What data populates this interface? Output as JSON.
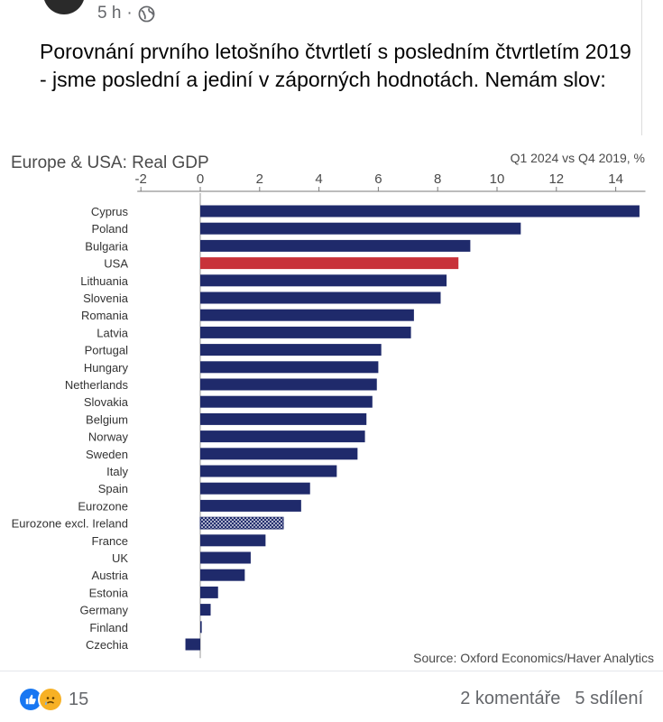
{
  "post": {
    "time": "5 h",
    "separator": "·",
    "audience_icon": "globe-icon",
    "text": "Porovnání prvního letošního čtvrtletí s posledním čtvrtletím 2019 - jsme poslední a jediní v záporných hodnotách. Nemám slov:"
  },
  "colors": {
    "bar": "#1f2a6b",
    "highlight": "#c8323a",
    "title": "#4a4a4a"
  },
  "chart_data": {
    "type": "bar",
    "orientation": "horizontal",
    "title": "Europe & USA: Real GDP",
    "subtitle": "Q1 2024 vs Q4 2019, %",
    "source": "Source: Oxford Economics/Haver Analytics",
    "xlim": [
      -2,
      15
    ],
    "ticks": [
      -2,
      0,
      2,
      4,
      6,
      8,
      10,
      12,
      14
    ],
    "categories": [
      "Cyprus",
      "Poland",
      "Bulgaria",
      "USA",
      "Lithuania",
      "Slovenia",
      "Romania",
      "Latvia",
      "Portugal",
      "Hungary",
      "Netherlands",
      "Slovakia",
      "Belgium",
      "Norway",
      "Sweden",
      "Italy",
      "Spain",
      "Eurozone",
      "Eurozone excl. Ireland",
      "France",
      "UK",
      "Austria",
      "Estonia",
      "Germany",
      "Finland",
      "Czechia"
    ],
    "values": [
      14.8,
      10.8,
      9.1,
      8.7,
      8.3,
      8.1,
      7.2,
      7.1,
      6.1,
      6.0,
      5.95,
      5.8,
      5.6,
      5.55,
      5.3,
      4.6,
      3.7,
      3.4,
      2.8,
      2.2,
      1.7,
      1.5,
      0.6,
      0.35,
      0.05,
      -0.5
    ],
    "highlight": [
      "USA"
    ],
    "hatched": [
      "Eurozone excl. Ireland"
    ]
  },
  "footer": {
    "reaction_icons": [
      "like-icon",
      "sad-icon"
    ],
    "reaction_count": "15",
    "comments": "2 komentáře",
    "shares": "5 sdílení"
  }
}
